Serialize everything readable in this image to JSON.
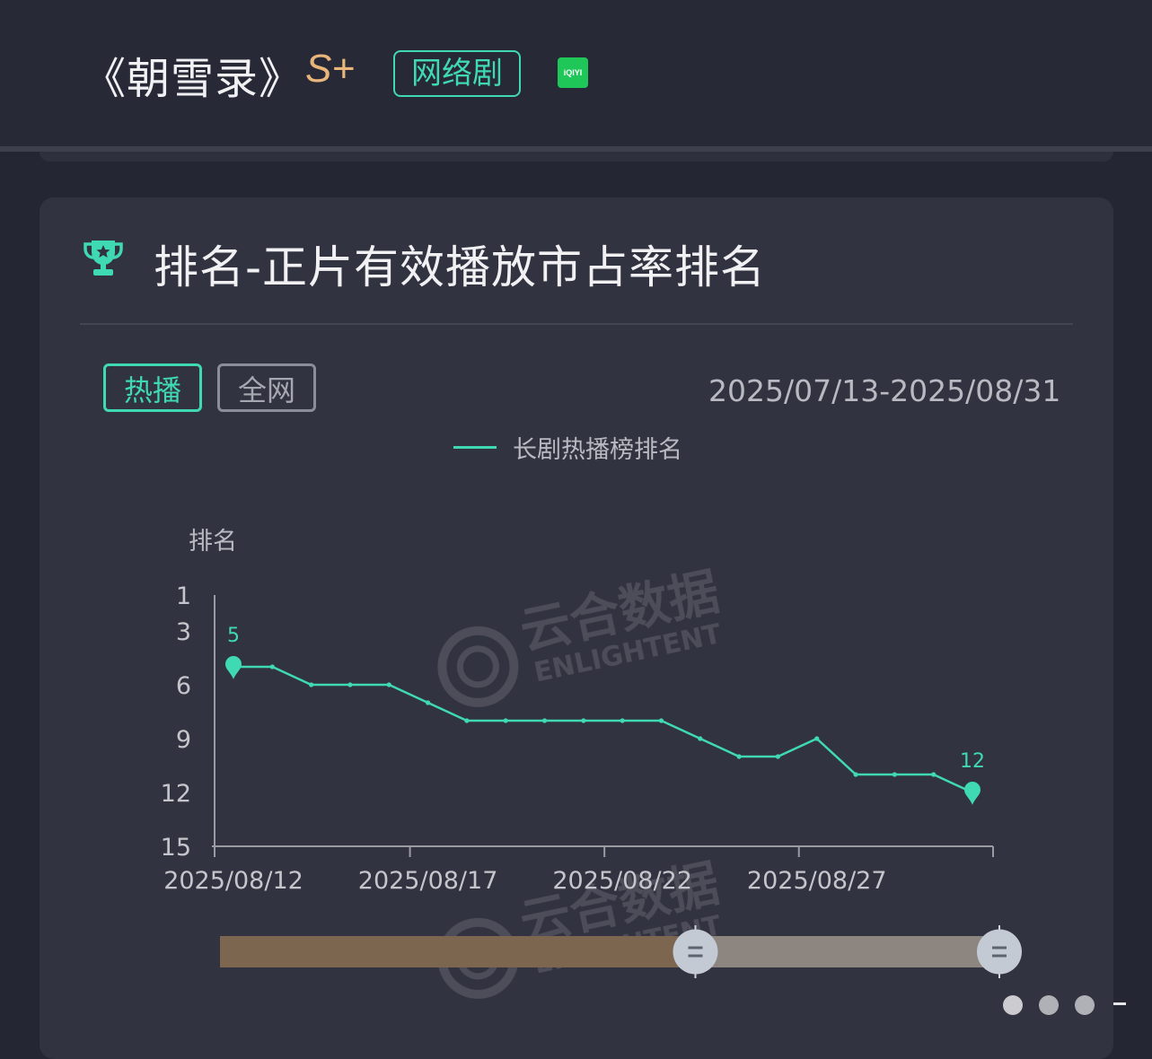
{
  "header": {
    "title": "《朝雪录》",
    "grade": "S+",
    "type_tag": "网络剧",
    "platform": "iQIYI",
    "platform_color": "#1fc759"
  },
  "section": {
    "icon": "trophy-icon",
    "title": "排名-正片有效播放市占率排名"
  },
  "tabs": [
    {
      "label": "热播",
      "active": true
    },
    {
      "label": "全网",
      "active": false
    }
  ],
  "date_range": "2025/07/13-2025/08/31",
  "watermark": "云合数据 ENLIGHTENT",
  "colors": {
    "accent": "#3fd9b3",
    "grade": "#e8b57a",
    "background": "#252634",
    "card": "#323340"
  },
  "chart_data": {
    "type": "line",
    "ylabel": "排名",
    "y_inverted": true,
    "ylim": [
      1,
      15
    ],
    "yticks": [
      1,
      3,
      6,
      9,
      12,
      15
    ],
    "x_tick_labels": [
      "2025/08/12",
      "2025/08/17",
      "2025/08/22",
      "2025/08/27"
    ],
    "x": [
      "2025/08/12",
      "2025/08/13",
      "2025/08/14",
      "2025/08/15",
      "2025/08/16",
      "2025/08/17",
      "2025/08/18",
      "2025/08/19",
      "2025/08/20",
      "2025/08/21",
      "2025/08/22",
      "2025/08/23",
      "2025/08/24",
      "2025/08/25",
      "2025/08/26",
      "2025/08/27",
      "2025/08/28",
      "2025/08/29",
      "2025/08/30",
      "2025/08/31"
    ],
    "series": [
      {
        "name": "长剧热播榜排名",
        "color": "#3fd9b3",
        "values": [
          5,
          5,
          6,
          6,
          6,
          7,
          8,
          8,
          8,
          8,
          8,
          8,
          9,
          10,
          10,
          9,
          11,
          11,
          11,
          12
        ]
      }
    ],
    "annotations": [
      {
        "x": "2025/08/12",
        "label": "5"
      },
      {
        "x": "2025/08/31",
        "label": "12"
      }
    ],
    "grid": false,
    "legend": "top-center",
    "data_zoom": {
      "start_fraction": 0.61,
      "end_fraction": 1.0
    }
  }
}
